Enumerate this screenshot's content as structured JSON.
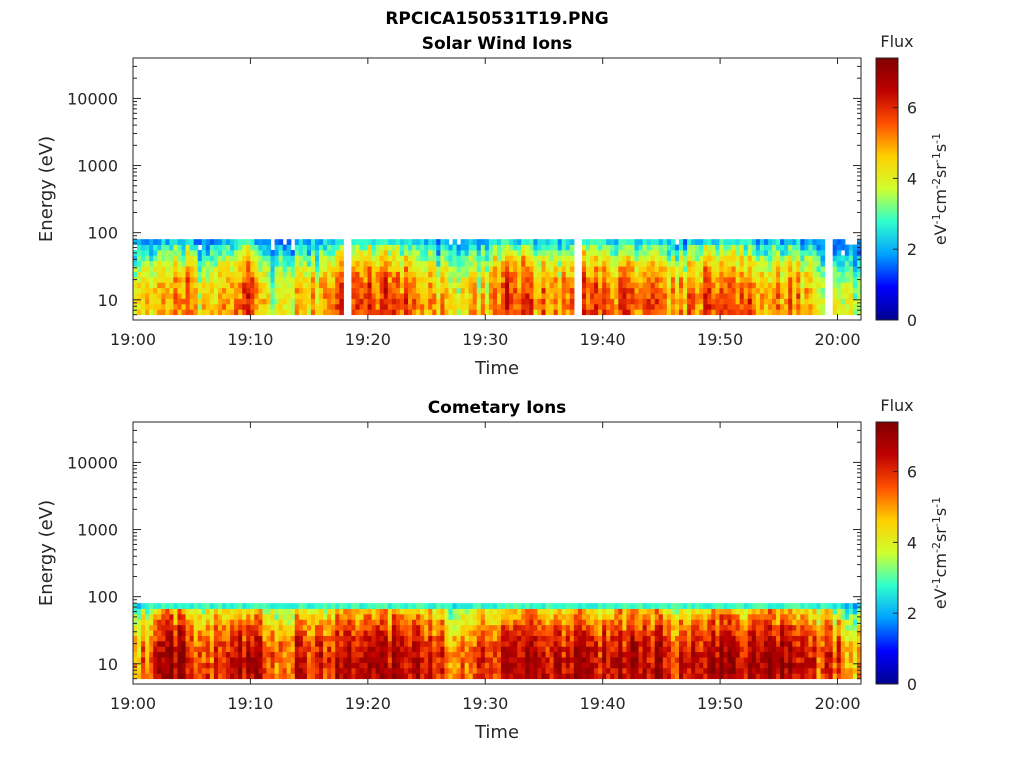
{
  "figure": {
    "title": "RPCICA150531T19.PNG"
  },
  "colormap": [
    "#00008f",
    "#0000ff",
    "#00a0ff",
    "#2fffcf",
    "#cfff2f",
    "#ffcf00",
    "#ff5000",
    "#bf0000",
    "#800000"
  ],
  "chart_data": [
    {
      "type": "heatmap",
      "title": "Solar Wind Ions",
      "xlabel": "Time",
      "ylabel": "Energy (eV)",
      "y_scale": "log",
      "ylim": [
        5,
        40000
      ],
      "xlim": [
        "19:00",
        "20:02"
      ],
      "x_ticks": [
        "19:00",
        "19:10",
        "19:20",
        "19:30",
        "19:40",
        "19:50",
        "20:00"
      ],
      "y_ticks": [
        "10",
        "100",
        "1000",
        "10000"
      ],
      "y_tick_values": [
        10,
        100,
        1000,
        10000
      ],
      "colorbar": {
        "label": "Flux",
        "units": "eV-1cm-2sr-1s-1",
        "range": [
          0,
          7.4
        ],
        "ticks": [
          "0",
          "2",
          "4",
          "6"
        ],
        "tick_values": [
          0,
          2,
          4,
          6
        ]
      },
      "energy_range_eV": [
        6,
        80
      ],
      "flux_profile_minutes": [
        0,
        2,
        4,
        6,
        8,
        10,
        12,
        14,
        16,
        18,
        20,
        22,
        24,
        26,
        28,
        30,
        32,
        34,
        36,
        38,
        40,
        42,
        44,
        46,
        48,
        50,
        52,
        54,
        56,
        58,
        60,
        61
      ],
      "flux_profile_peak": [
        3.8,
        4.8,
        5.5,
        4.0,
        5.0,
        5.8,
        3.5,
        4.8,
        4.5,
        5.6,
        5.7,
        5.8,
        5.2,
        4.5,
        4.0,
        4.6,
        6.0,
        5.2,
        4.8,
        5.8,
        5.0,
        5.4,
        5.7,
        4.5,
        5.2,
        6.0,
        5.3,
        4.8,
        5.4,
        4.2,
        4.2,
        3.5
      ]
    },
    {
      "type": "heatmap",
      "title": "Cometary Ions",
      "xlabel": "Time",
      "ylabel": "Energy (eV)",
      "y_scale": "log",
      "ylim": [
        5,
        40000
      ],
      "xlim": [
        "19:00",
        "20:02"
      ],
      "x_ticks": [
        "19:00",
        "19:10",
        "19:20",
        "19:30",
        "19:40",
        "19:50",
        "20:00"
      ],
      "y_ticks": [
        "10",
        "100",
        "1000",
        "10000"
      ],
      "y_tick_values": [
        10,
        100,
        1000,
        10000
      ],
      "colorbar": {
        "label": "Flux",
        "units": "eV-1cm-2sr-1s-1",
        "range": [
          0,
          7.4
        ],
        "ticks": [
          "0",
          "2",
          "4",
          "6"
        ],
        "tick_values": [
          0,
          2,
          4,
          6
        ]
      },
      "energy_range_eV": [
        6,
        80
      ],
      "flux_profile_minutes": [
        0,
        2,
        4,
        6,
        8,
        10,
        12,
        14,
        16,
        18,
        20,
        22,
        24,
        26,
        28,
        30,
        32,
        34,
        36,
        38,
        40,
        42,
        44,
        46,
        48,
        50,
        52,
        54,
        56,
        58,
        60,
        61
      ],
      "flux_profile_peak": [
        4.5,
        6.5,
        6.7,
        5.2,
        6.4,
        6.6,
        5.0,
        6.2,
        6.0,
        6.5,
        6.6,
        6.6,
        6.6,
        5.8,
        5.0,
        6.2,
        6.5,
        6.6,
        6.3,
        6.4,
        6.2,
        6.5,
        6.6,
        6.0,
        6.6,
        6.7,
        6.0,
        6.5,
        6.6,
        5.8,
        5.6,
        4.5
      ]
    }
  ]
}
